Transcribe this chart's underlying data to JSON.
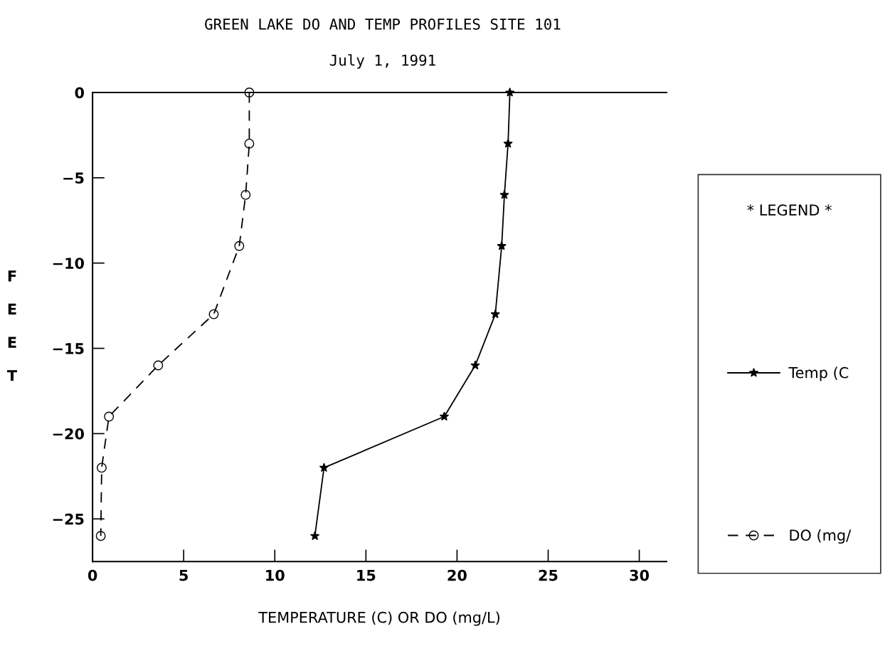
{
  "chart_data": {
    "type": "line",
    "title": "GREEN LAKE DO AND TEMP PROFILES SITE 101",
    "subtitle": "July 1, 1991",
    "xlabel": "TEMPERATURE (C) OR DO (mg/L)",
    "ylabel": "FEET",
    "legend_title": "* LEGEND *",
    "legend": "right",
    "grid": false,
    "series": [
      {
        "name": "Temp (C",
        "color": "#000000",
        "marker": "star",
        "line_style": "solid",
        "x": [
          22.9,
          22.8,
          22.6,
          22.45,
          22.1,
          21.0,
          19.3,
          12.7,
          12.2
        ],
        "values": [
          0,
          -3,
          -6,
          -9,
          -13,
          -16,
          -19,
          -22,
          -26
        ]
      },
      {
        "name": "DO (mg/",
        "color": "#000000",
        "marker": "circle",
        "line_style": "dashed",
        "x": [
          8.6,
          8.6,
          8.4,
          8.05,
          6.65,
          3.6,
          0.9,
          0.5,
          0.45
        ],
        "values": [
          0,
          -3,
          -6,
          -9,
          -13,
          -16,
          -19,
          -22,
          -26
        ]
      }
    ],
    "xlim": [
      0,
      31.5
    ],
    "xticks": [
      0,
      5,
      10,
      15,
      20,
      25,
      30
    ],
    "ylim": [
      -27.5,
      0
    ],
    "yticks": [
      0,
      -5,
      -10,
      -15,
      -20,
      -25
    ]
  }
}
